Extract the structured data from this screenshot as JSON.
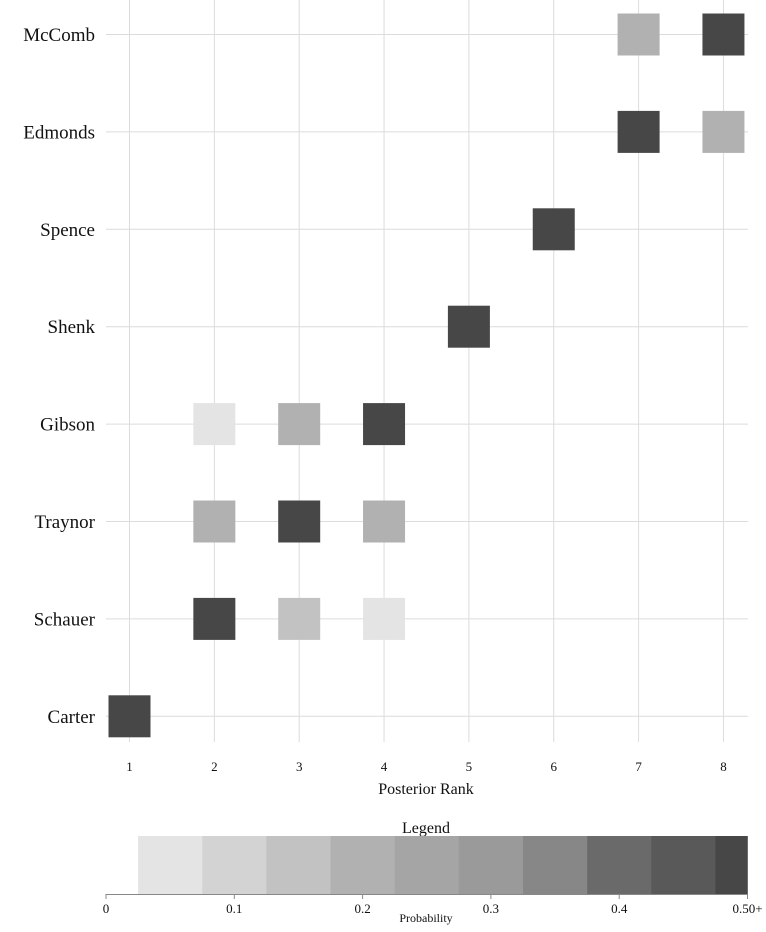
{
  "chart_data": {
    "type": "heatmap",
    "xlabel": "Posterior Rank",
    "x_categories": [
      "1",
      "2",
      "3",
      "4",
      "5",
      "6",
      "7",
      "8"
    ],
    "y_categories": [
      "McComb",
      "Edmonds",
      "Spence",
      "Shenk",
      "Gibson",
      "Traynor",
      "Schauer",
      "Carter"
    ],
    "grid": true,
    "cells": [
      {
        "name": "McComb",
        "rank": 7,
        "probability": 0.2
      },
      {
        "name": "McComb",
        "rank": 8,
        "probability": 0.8
      },
      {
        "name": "Edmonds",
        "rank": 7,
        "probability": 0.8
      },
      {
        "name": "Edmonds",
        "rank": 8,
        "probability": 0.2
      },
      {
        "name": "Spence",
        "rank": 6,
        "probability": 1.0
      },
      {
        "name": "Shenk",
        "rank": 5,
        "probability": 1.0
      },
      {
        "name": "Gibson",
        "rank": 2,
        "probability": 0.05
      },
      {
        "name": "Gibson",
        "rank": 3,
        "probability": 0.2
      },
      {
        "name": "Gibson",
        "rank": 4,
        "probability": 0.75
      },
      {
        "name": "Traynor",
        "rank": 2,
        "probability": 0.2
      },
      {
        "name": "Traynor",
        "rank": 3,
        "probability": 0.6
      },
      {
        "name": "Traynor",
        "rank": 4,
        "probability": 0.2
      },
      {
        "name": "Schauer",
        "rank": 2,
        "probability": 0.75
      },
      {
        "name": "Schauer",
        "rank": 3,
        "probability": 0.15
      },
      {
        "name": "Schauer",
        "rank": 4,
        "probability": 0.05
      },
      {
        "name": "Carter",
        "rank": 1,
        "probability": 1.0
      }
    ],
    "legend": {
      "title": "Legend",
      "xlabel": "Probability",
      "tick_values": [
        0,
        0.1,
        0.2,
        0.3,
        0.4,
        0.5
      ],
      "tick_labels": [
        "0",
        "0.1",
        "0.2",
        "0.3",
        "0.4",
        "0.50+"
      ],
      "bins": [
        {
          "from": 0.025,
          "to": 0.075,
          "color": "#e4e4e4"
        },
        {
          "from": 0.075,
          "to": 0.125,
          "color": "#d3d3d3"
        },
        {
          "from": 0.125,
          "to": 0.175,
          "color": "#c2c2c2"
        },
        {
          "from": 0.175,
          "to": 0.225,
          "color": "#b1b1b1"
        },
        {
          "from": 0.225,
          "to": 0.275,
          "color": "#a5a5a5"
        },
        {
          "from": 0.275,
          "to": 0.325,
          "color": "#9a9a9a"
        },
        {
          "from": 0.325,
          "to": 0.375,
          "color": "#878787"
        },
        {
          "from": 0.375,
          "to": 0.425,
          "color": "#6a6a6a"
        },
        {
          "from": 0.425,
          "to": 0.475,
          "color": "#595959"
        },
        {
          "from": 0.475,
          "to": 0.5,
          "color": "#474747"
        }
      ]
    },
    "colors": {
      "grid": "#dcdcdc",
      "axis": "#888888",
      "max_cell": "#474747"
    }
  }
}
